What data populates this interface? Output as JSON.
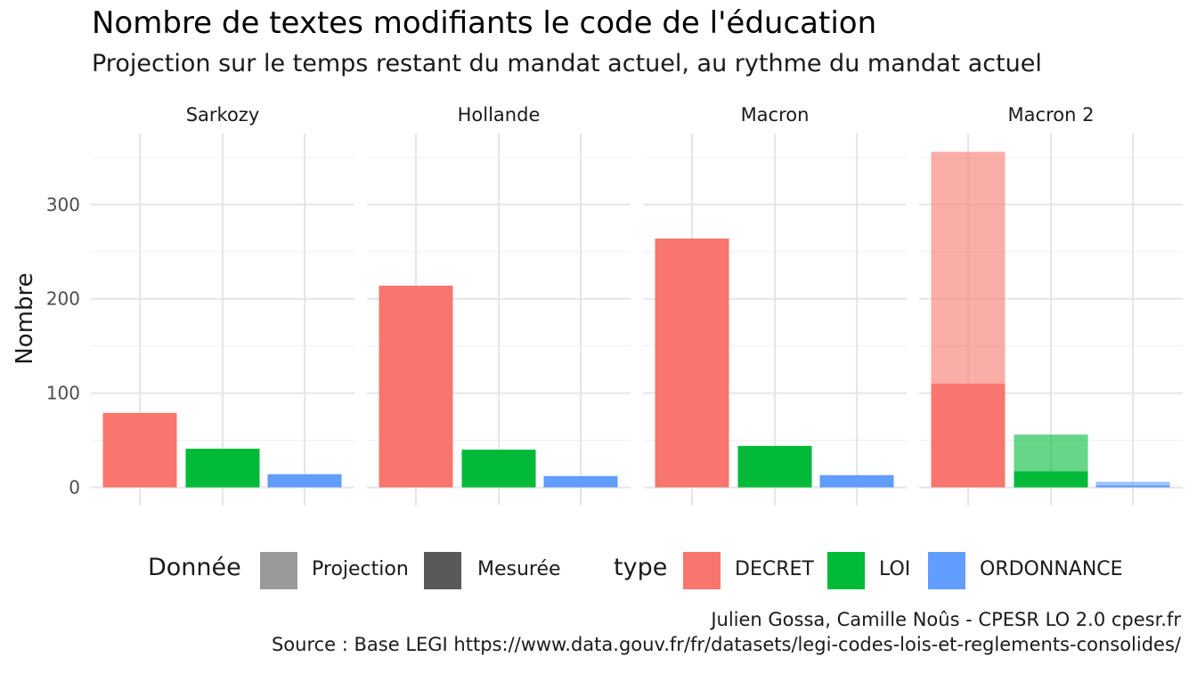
{
  "title": "Nombre de textes modifiants le code de l'éducation",
  "subtitle": "Projection sur le temps restant du mandat actuel, au rythme du mandat actuel",
  "caption": {
    "line1": "Julien Gossa, Camille Noûs - CPESR LO 2.0 cpesr.fr",
    "line2": "Source : Base LEGI https://www.data.gouv.fr/fr/datasets/legi-codes-lois-et-reglements-consolides/"
  },
  "legend": {
    "donnee_title": "Donnée",
    "donnee_items": [
      {
        "label": "Projection",
        "color": "#999999"
      },
      {
        "label": "Mesurée",
        "color": "#595959"
      }
    ],
    "type_title": "type",
    "type_items": [
      {
        "label": "DECRET",
        "color": "#F8766D"
      },
      {
        "label": "LOI",
        "color": "#00BA38"
      },
      {
        "label": "ORDONNANCE",
        "color": "#619CFF"
      }
    ]
  },
  "chart_data": {
    "type": "bar",
    "ylabel": "Nombre",
    "ylim": [
      0,
      375
    ],
    "yticks": [
      0,
      100,
      200,
      300
    ],
    "grid": true,
    "legend_position": "bottom",
    "categories": [
      "DECRET",
      "LOI",
      "ORDONNANCE"
    ],
    "colors": {
      "DECRET": "#F8766D",
      "LOI": "#00BA38",
      "ORDONNANCE": "#619CFF"
    },
    "panels": [
      {
        "name": "Sarkozy",
        "mesuree": [
          79,
          41,
          14
        ],
        "projection": [
          0,
          0,
          0
        ]
      },
      {
        "name": "Hollande",
        "mesuree": [
          214,
          40,
          12
        ],
        "projection": [
          0,
          0,
          0
        ]
      },
      {
        "name": "Macron",
        "mesuree": [
          264,
          44,
          13
        ],
        "projection": [
          0,
          0,
          0
        ]
      },
      {
        "name": "Macron 2",
        "mesuree": [
          110,
          17,
          2
        ],
        "projection": [
          356,
          56,
          6
        ]
      }
    ]
  }
}
